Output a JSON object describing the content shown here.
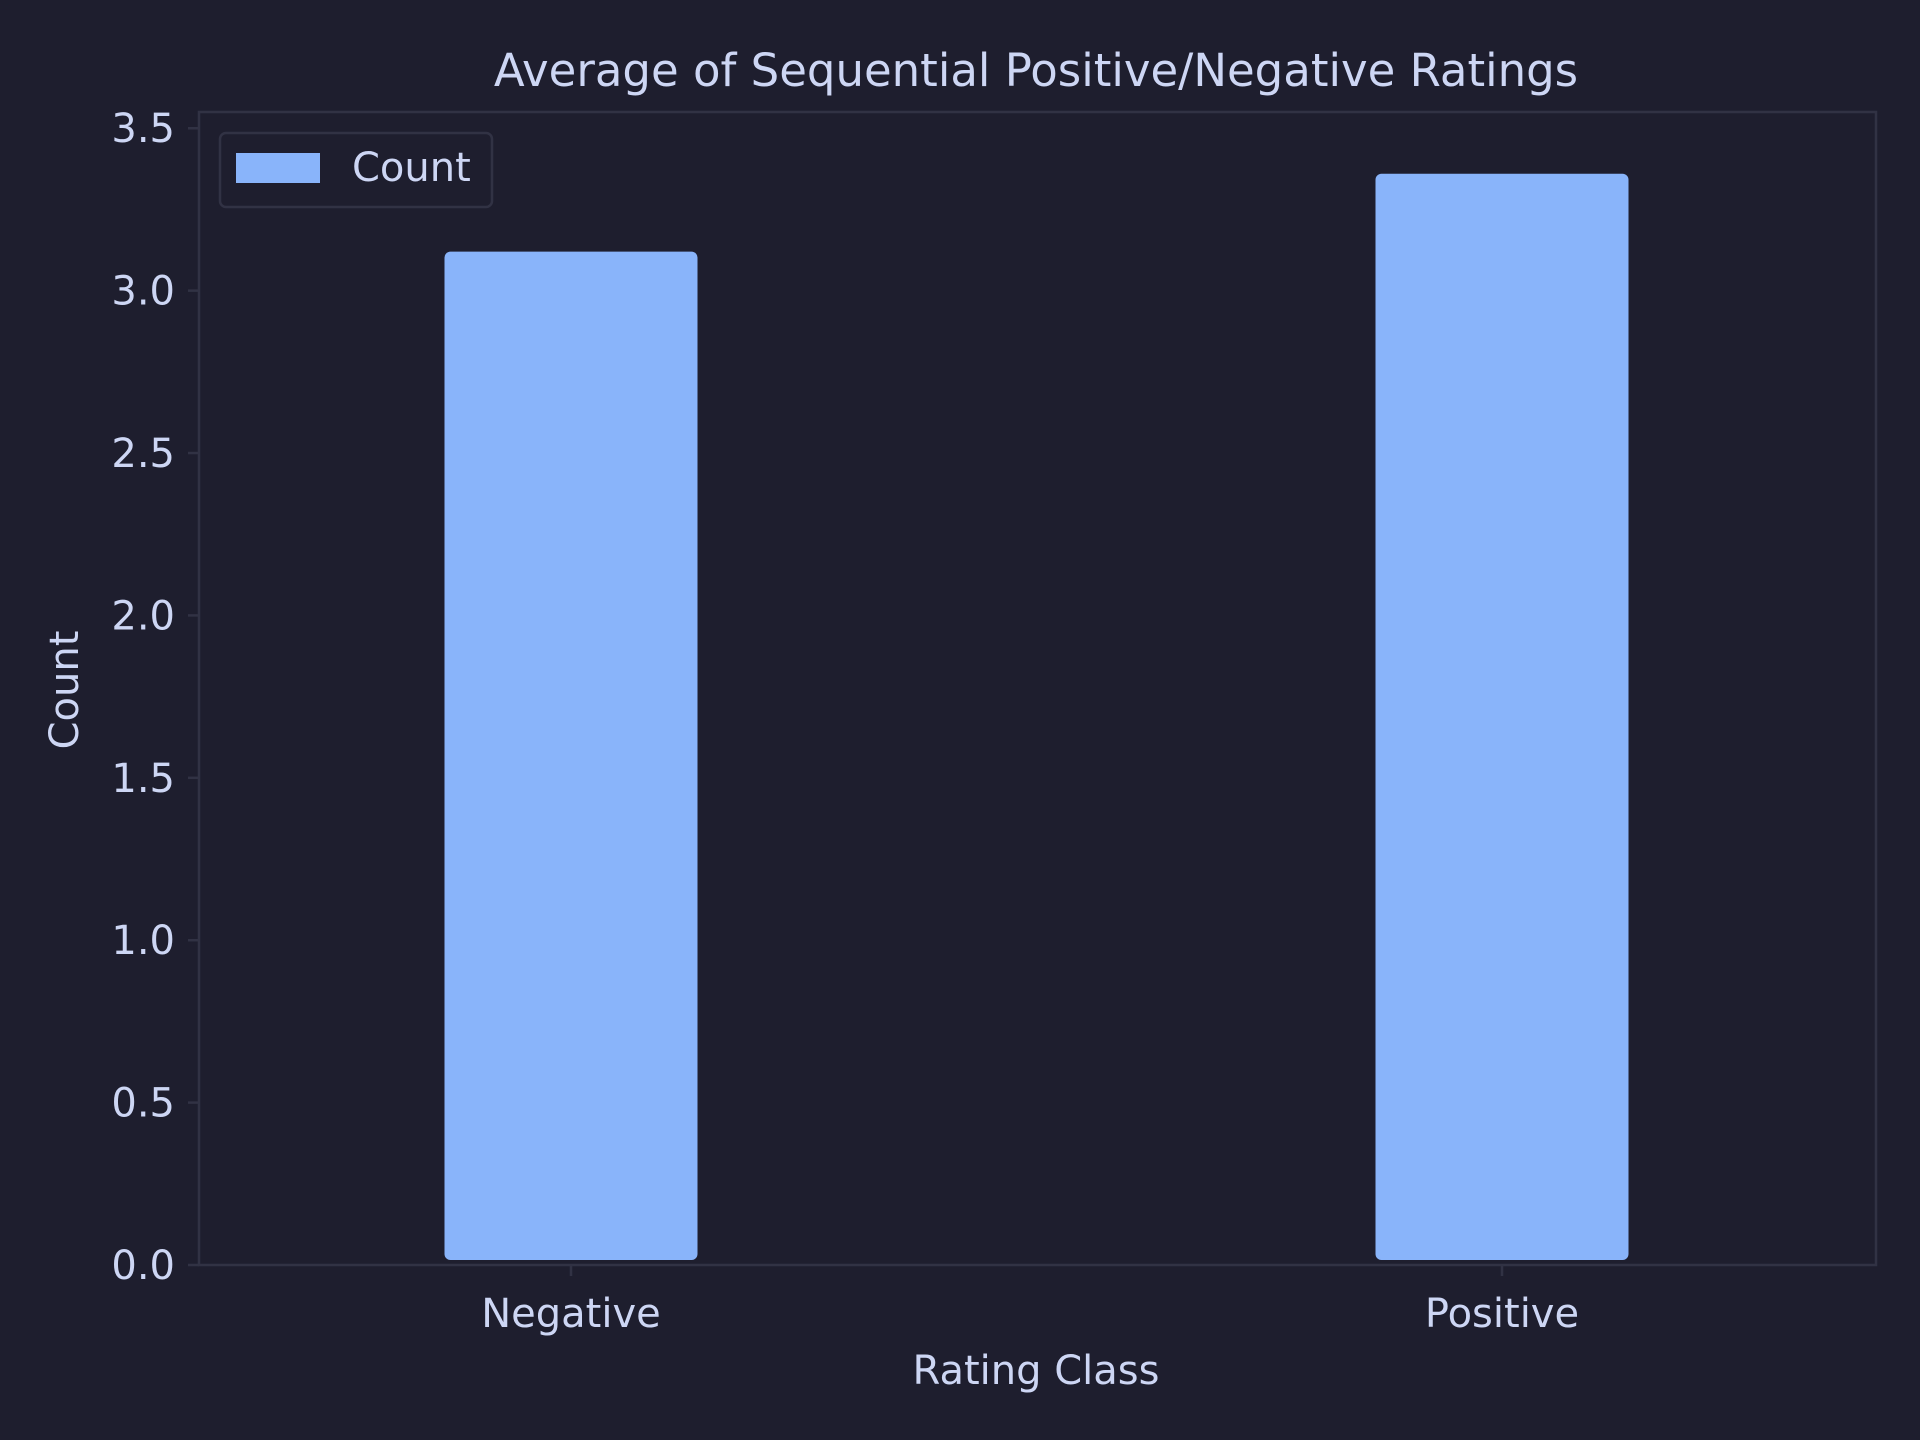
{
  "chart_data": {
    "type": "bar",
    "title": "Average of Sequential Positive/Negative Ratings",
    "xlabel": "Rating Class",
    "ylabel": "Count",
    "categories": [
      "Negative",
      "Positive"
    ],
    "series": [
      {
        "name": "Count",
        "values": [
          3.12,
          3.36
        ]
      }
    ],
    "ylim": [
      0,
      3.55
    ],
    "yticks": [
      0.0,
      0.5,
      1.0,
      1.5,
      2.0,
      2.5,
      3.0,
      3.5
    ],
    "ytick_labels": [
      "0.0",
      "0.5",
      "1.0",
      "1.5",
      "2.0",
      "2.5",
      "3.0",
      "3.5"
    ],
    "grid": false,
    "legend_position": "top-left",
    "colors": {
      "background": "#1e1e2e",
      "bar": "#89b4fa",
      "text": "#cdd6f4",
      "spine": "#313244"
    }
  }
}
